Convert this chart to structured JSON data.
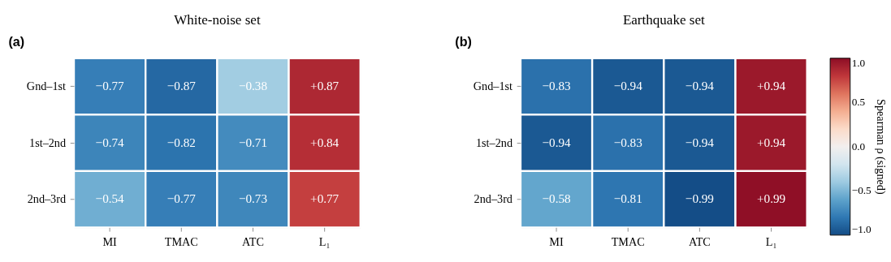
{
  "chart_data": [
    {
      "type": "heatmap",
      "title": "White-noise set",
      "annotations": [
        "(a)"
      ],
      "categories": [
        "MI",
        "TMAC",
        "ATC",
        "L₁"
      ],
      "y_categories": [
        "Gnd–1st",
        "1st–2nd",
        "2nd–3rd"
      ],
      "cells": [
        [
          -0.77,
          -0.87,
          -0.38,
          0.87
        ],
        [
          -0.74,
          -0.82,
          -0.71,
          0.84
        ],
        [
          -0.54,
          -0.77,
          -0.73,
          0.77
        ]
      ],
      "cell_labels": [
        [
          "−0.77",
          "−0.87",
          "−0.38",
          "+0.87"
        ],
        [
          "−0.74",
          "−0.82",
          "−0.71",
          "+0.84"
        ],
        [
          "−0.54",
          "−0.77",
          "−0.73",
          "+0.77"
        ]
      ]
    },
    {
      "type": "heatmap",
      "title": "Earthquake set",
      "annotations": [
        "(b)"
      ],
      "categories": [
        "MI",
        "TMAC",
        "ATC",
        "L₁"
      ],
      "y_categories": [
        "Gnd–1st",
        "1st–2nd",
        "2nd–3rd"
      ],
      "cells": [
        [
          -0.83,
          -0.94,
          -0.94,
          0.94
        ],
        [
          -0.94,
          -0.83,
          -0.94,
          0.94
        ],
        [
          -0.58,
          -0.81,
          -0.99,
          0.99
        ]
      ],
      "cell_labels": [
        [
          "−0.83",
          "−0.94",
          "−0.94",
          "+0.94"
        ],
        [
          "−0.94",
          "−0.83",
          "−0.94",
          "+0.94"
        ],
        [
          "−0.58",
          "−0.81",
          "−0.99",
          "+0.99"
        ]
      ],
      "clim": [
        -1.0,
        1.0
      ],
      "cticks": [
        {
          "value": -1.0,
          "label": "−1.0"
        },
        {
          "value": -0.5,
          "label": "−0.5"
        },
        {
          "value": 0.0,
          "label": "0.0"
        },
        {
          "value": 0.5,
          "label": "0.5"
        },
        {
          "value": 1.0,
          "label": "1.0"
        }
      ],
      "clabel": "Spearman ρ  (signed)"
    }
  ]
}
